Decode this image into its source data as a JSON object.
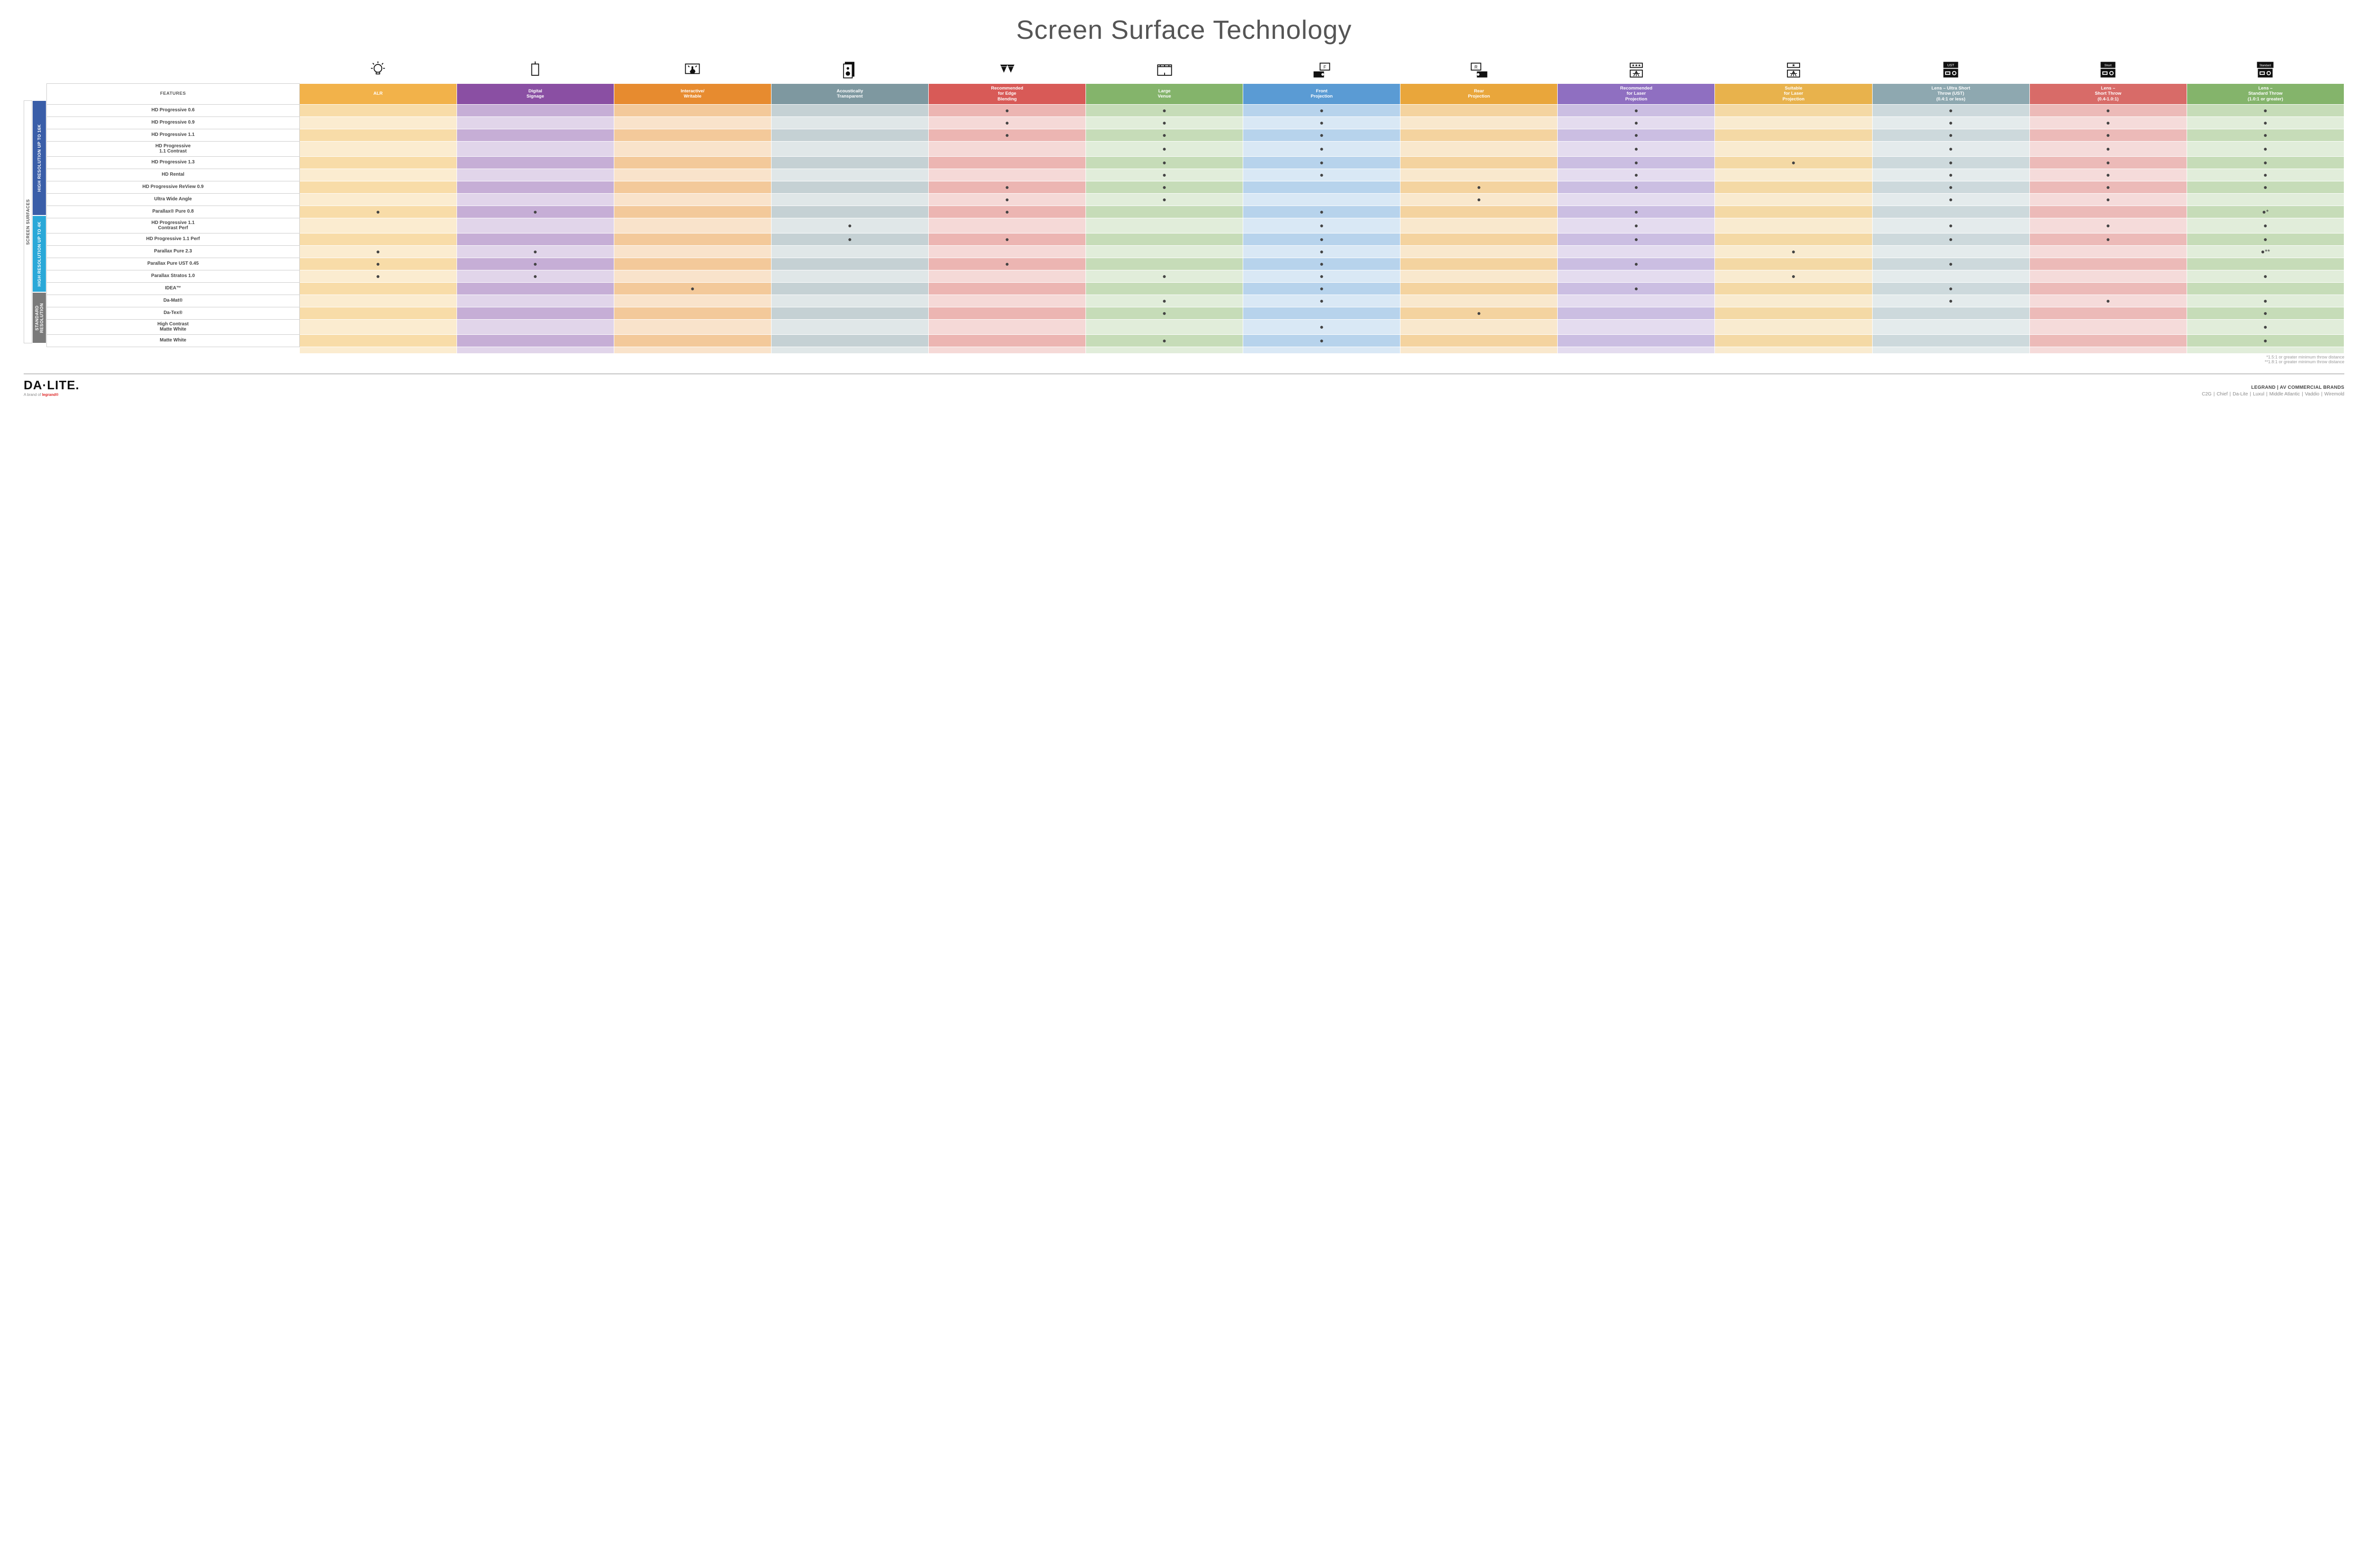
{
  "title": "Screen Surface Technology",
  "colors": {
    "col": [
      "#f2b24a",
      "#8a4fa3",
      "#e78b2f",
      "#7e98a0",
      "#d85a57",
      "#84b46b",
      "#5a9bd4",
      "#e9a63b",
      "#8f6fc1",
      "#e8b24c",
      "#8ea8b0",
      "#d86b68",
      "#84b46b"
    ],
    "col_light": [
      "#f8dca8",
      "#c6aed6",
      "#f3c99a",
      "#c5d1d4",
      "#ecb5b2",
      "#c6dcb8",
      "#b7d3ec",
      "#f4d39f",
      "#cbbee2",
      "#f4d9a5",
      "#cdd9dc",
      "#ecbab8",
      "#c6dcb8"
    ],
    "col_lighter": [
      "#fbecd0",
      "#e1d5ea",
      "#f9e3cb",
      "#e0e7e8",
      "#f5d9d7",
      "#e1edda",
      "#d9e8f5",
      "#f9e8cd",
      "#e4dcef",
      "#f9ebd0",
      "#e4ebec",
      "#f5dbda",
      "#e1edda"
    ],
    "group": [
      "#3a5ea8",
      "#2aa8d8",
      "#7a7a7a"
    ]
  },
  "features_label": "FEATURES",
  "columns": [
    {
      "label": "ALR",
      "icon": "bulb"
    },
    {
      "label": "Digital\nSignage",
      "icon": "signage"
    },
    {
      "label": "Interactive/\nWritable",
      "icon": "touch"
    },
    {
      "label": "Acoustically\nTransparent",
      "icon": "speaker"
    },
    {
      "label": "Recommended\nfor Edge\nBlending",
      "icon": "blend"
    },
    {
      "label": "Large\nVenue",
      "icon": "venue"
    },
    {
      "label": "Front\nProjection",
      "icon": "front"
    },
    {
      "label": "Rear\nProjection",
      "icon": "rear"
    },
    {
      "label": "Recommended\nfor Laser\nProjection",
      "icon": "laser3"
    },
    {
      "label": "Suitable\nfor Laser\nProjection",
      "icon": "laser1"
    },
    {
      "label": "Lens – Ultra Short\nThrow (UST)\n(0.4:1 or less)",
      "icon": "ust"
    },
    {
      "label": "Lens –\nShort Throw\n(0.4-1.0:1)",
      "icon": "short"
    },
    {
      "label": "Lens –\nStandard Throw\n(1.0:1 or greater)",
      "icon": "standard"
    }
  ],
  "outer_label": "SCREEN SURFACES",
  "groups": [
    {
      "label": "HIGH RESOLUTION UP TO 16K",
      "rows": 9
    },
    {
      "label": "HIGH RESOLUTION UP TO 4K",
      "rows": 6
    },
    {
      "label": "STANDARD\nRESOLUTION",
      "rows": 4
    }
  ],
  "rows": [
    {
      "label": "HD Progressive 0.6",
      "cells": [
        "",
        "",
        "",
        "",
        "•",
        "•",
        "•",
        "",
        "•",
        "",
        "•",
        "•",
        "•"
      ]
    },
    {
      "label": "HD Progressive 0.9",
      "cells": [
        "",
        "",
        "",
        "",
        "•",
        "•",
        "•",
        "",
        "•",
        "",
        "•",
        "•",
        "•"
      ]
    },
    {
      "label": "HD Progressive 1.1",
      "cells": [
        "",
        "",
        "",
        "",
        "•",
        "•",
        "•",
        "",
        "•",
        "",
        "•",
        "•",
        "•"
      ]
    },
    {
      "label": "HD Progressive\n1.1 Contrast",
      "cells": [
        "",
        "",
        "",
        "",
        "",
        "•",
        "•",
        "",
        "•",
        "",
        "•",
        "•",
        "•"
      ]
    },
    {
      "label": "HD Progressive 1.3",
      "cells": [
        "",
        "",
        "",
        "",
        "",
        "•",
        "•",
        "",
        "•",
        "•",
        "•",
        "•",
        "•"
      ]
    },
    {
      "label": "HD Rental",
      "cells": [
        "",
        "",
        "",
        "",
        "",
        "•",
        "•",
        "",
        "•",
        "",
        "•",
        "•",
        "•"
      ]
    },
    {
      "label": "HD Progressive ReView 0.9",
      "cells": [
        "",
        "",
        "",
        "",
        "•",
        "•",
        "",
        "•",
        "•",
        "",
        "•",
        "•",
        "•"
      ]
    },
    {
      "label": "Ultra Wide Angle",
      "cells": [
        "",
        "",
        "",
        "",
        "•",
        "•",
        "",
        "•",
        "",
        "",
        "•",
        "•",
        ""
      ]
    },
    {
      "label": "Parallax® Pure 0.8",
      "cells": [
        "•",
        "•",
        "",
        "",
        "•",
        "",
        "•",
        "",
        "•",
        "",
        "",
        "",
        "•*"
      ]
    },
    {
      "label": "HD Progressive 1.1\nContrast Perf",
      "cells": [
        "",
        "",
        "",
        "•",
        "",
        "",
        "•",
        "",
        "•",
        "",
        "•",
        "•",
        "•"
      ]
    },
    {
      "label": "HD Progressive 1.1 Perf",
      "cells": [
        "",
        "",
        "",
        "•",
        "•",
        "",
        "•",
        "",
        "•",
        "",
        "•",
        "•",
        "•"
      ]
    },
    {
      "label": "Parallax Pure 2.3",
      "cells": [
        "•",
        "•",
        "",
        "",
        "",
        "",
        "•",
        "",
        "",
        "•",
        "",
        "",
        "•**"
      ]
    },
    {
      "label": "Parallax Pure UST 0.45",
      "cells": [
        "•",
        "•",
        "",
        "",
        "•",
        "",
        "•",
        "",
        "•",
        "",
        "•",
        "",
        ""
      ]
    },
    {
      "label": "Parallax Stratos 1.0",
      "cells": [
        "•",
        "•",
        "",
        "",
        "",
        "•",
        "•",
        "",
        "",
        "•",
        "",
        "",
        "•"
      ]
    },
    {
      "label": "IDEA™",
      "cells": [
        "",
        "",
        "•",
        "",
        "",
        "",
        "•",
        "",
        "•",
        "",
        "•",
        "",
        ""
      ]
    },
    {
      "label": "Da-Mat®",
      "cells": [
        "",
        "",
        "",
        "",
        "",
        "•",
        "•",
        "",
        "",
        "",
        "•",
        "•",
        "•"
      ]
    },
    {
      "label": "Da-Tex®",
      "cells": [
        "",
        "",
        "",
        "",
        "",
        "•",
        "",
        "•",
        "",
        "",
        "",
        "",
        "•"
      ]
    },
    {
      "label": "High Contrast\nMatte White",
      "cells": [
        "",
        "",
        "",
        "",
        "",
        "",
        "•",
        "",
        "",
        "",
        "",
        "",
        "•"
      ]
    },
    {
      "label": "Matte White",
      "cells": [
        "",
        "",
        "",
        "",
        "",
        "•",
        "•",
        "",
        "",
        "",
        "",
        "",
        "•"
      ]
    }
  ],
  "footnotes": [
    "*1.5:1 or greater minimum throw distance",
    "**1.8:1 or greater minimum throw distance"
  ],
  "footer": {
    "logo": "DA·LITE.",
    "logo_sub_prefix": "A brand of ",
    "logo_sub_brand": "legrand®",
    "brands_title": "LEGRAND | AV COMMERCIAL BRANDS",
    "brands": [
      "C2G",
      "Chief",
      "Da-Lite",
      "Luxul",
      "Middle Atlantic",
      "Vaddio",
      "Wiremold"
    ]
  }
}
